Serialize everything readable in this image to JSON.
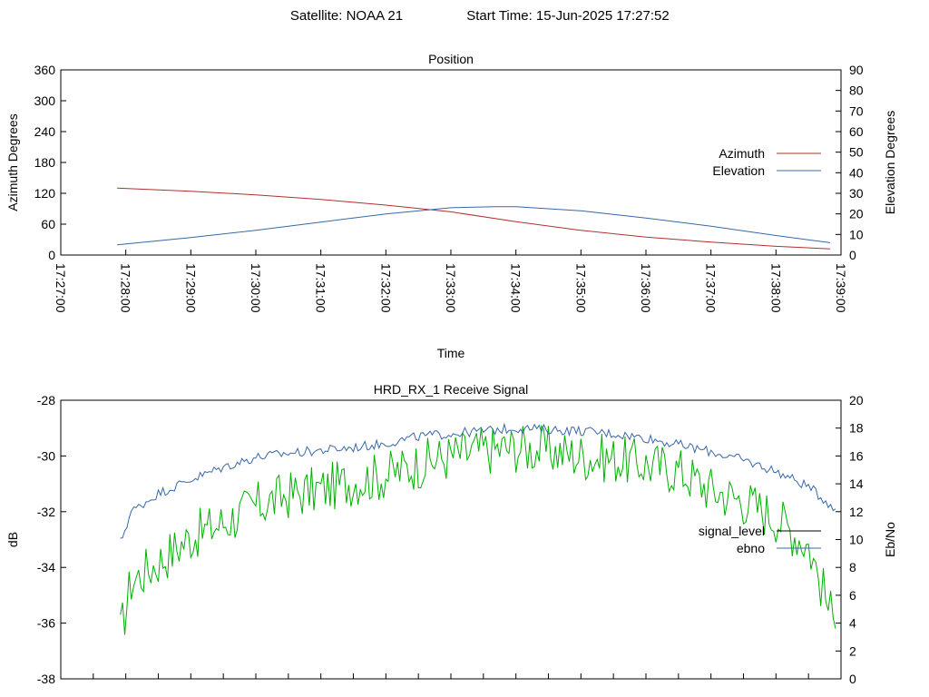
{
  "header": {
    "satellite": "Satellite: NOAA 21",
    "start_time": "Start Time: 15-Jun-2025 17:27:52"
  },
  "chart_data": [
    {
      "type": "line",
      "title": "Position",
      "xlabel": "Time",
      "ylabel": "Azimuth Degrees",
      "y2label": "Elevation Degrees",
      "xlim": [
        "17:27:00",
        "17:39:00"
      ],
      "ylim": [
        0,
        360
      ],
      "y2lim": [
        0,
        90
      ],
      "x_ticks": [
        "17:27:00",
        "17:28:00",
        "17:29:00",
        "17:30:00",
        "17:31:00",
        "17:32:00",
        "17:33:00",
        "17:34:00",
        "17:35:00",
        "17:36:00",
        "17:37:00",
        "17:38:00",
        "17:39:00"
      ],
      "y_ticks": [
        "0",
        "60",
        "120",
        "180",
        "240",
        "300",
        "360"
      ],
      "y2_ticks": [
        "0",
        "10",
        "20",
        "30",
        "40",
        "50",
        "60",
        "70",
        "80",
        "90"
      ],
      "legend_position": "right",
      "series": [
        {
          "name": "Azimuth",
          "axis": "y",
          "color": "#b03030",
          "x": [
            "17:27:52",
            "17:29:00",
            "17:30:00",
            "17:31:00",
            "17:32:00",
            "17:33:00",
            "17:34:00",
            "17:35:00",
            "17:36:00",
            "17:37:00",
            "17:38:00",
            "17:38:50"
          ],
          "values": [
            130,
            124,
            117,
            108,
            97,
            84,
            65,
            48,
            35,
            25,
            17,
            12
          ]
        },
        {
          "name": "Elevation",
          "axis": "y2",
          "color": "#3868a8",
          "x": [
            "17:27:52",
            "17:29:00",
            "17:30:00",
            "17:31:00",
            "17:32:00",
            "17:33:00",
            "17:33:40",
            "17:34:00",
            "17:35:00",
            "17:36:00",
            "17:37:00",
            "17:38:00",
            "17:38:50"
          ],
          "values": [
            5,
            8.5,
            12,
            16,
            20,
            23,
            23.5,
            23.5,
            21.5,
            18,
            14,
            9.5,
            6
          ]
        }
      ]
    },
    {
      "type": "line",
      "title": "HRD_RX_1 Receive Signal",
      "ylabel": "dB",
      "y2label": "Eb/No",
      "xlim": [
        "17:27:00",
        "17:39:00"
      ],
      "ylim": [
        -38,
        -28
      ],
      "y2lim": [
        0,
        20
      ],
      "y_ticks": [
        "-28",
        "-30",
        "-32",
        "-34",
        "-36",
        "-38"
      ],
      "y2_ticks": [
        "20",
        "18",
        "16",
        "14",
        "12",
        "10",
        "8",
        "6",
        "4",
        "2",
        "0"
      ],
      "legend_position": "right",
      "series": [
        {
          "name": "signal_level",
          "axis": "y",
          "color": "#00b000",
          "x": [
            "17:27:55",
            "17:28:05",
            "17:28:30",
            "17:29:00",
            "17:29:30",
            "17:30:00",
            "17:30:30",
            "17:31:00",
            "17:31:30",
            "17:32:00",
            "17:32:30",
            "17:33:00",
            "17:33:30",
            "17:34:00",
            "17:34:30",
            "17:35:00",
            "17:35:30",
            "17:36:00",
            "17:36:30",
            "17:37:00",
            "17:37:30",
            "17:38:00",
            "17:38:30",
            "17:38:55"
          ],
          "values": [
            -36.4,
            -34.5,
            -33.8,
            -32.9,
            -32.4,
            -31.8,
            -31.4,
            -31.2,
            -30.9,
            -30.7,
            -30.3,
            -30.0,
            -29.8,
            -29.7,
            -29.8,
            -30.0,
            -30.1,
            -30.3,
            -30.5,
            -31.2,
            -31.6,
            -32.2,
            -33.2,
            -36.2
          ]
        },
        {
          "name": "ebno",
          "axis": "y2",
          "color": "#3868a8",
          "x": [
            "17:27:55",
            "17:28:05",
            "17:28:30",
            "17:29:00",
            "17:29:30",
            "17:30:00",
            "17:30:30",
            "17:31:00",
            "17:31:30",
            "17:32:00",
            "17:32:30",
            "17:33:00",
            "17:33:30",
            "17:34:00",
            "17:34:30",
            "17:35:00",
            "17:35:30",
            "17:36:00",
            "17:36:30",
            "17:37:00",
            "17:37:30",
            "17:38:00",
            "17:38:30",
            "17:38:55"
          ],
          "values": [
            9.8,
            12.0,
            13.3,
            14.3,
            15.2,
            15.9,
            16.2,
            16.4,
            16.6,
            16.9,
            17.4,
            17.6,
            17.8,
            18.0,
            17.9,
            17.8,
            17.6,
            17.3,
            16.8,
            16.3,
            15.7,
            14.9,
            13.8,
            12.2
          ]
        }
      ]
    }
  ]
}
